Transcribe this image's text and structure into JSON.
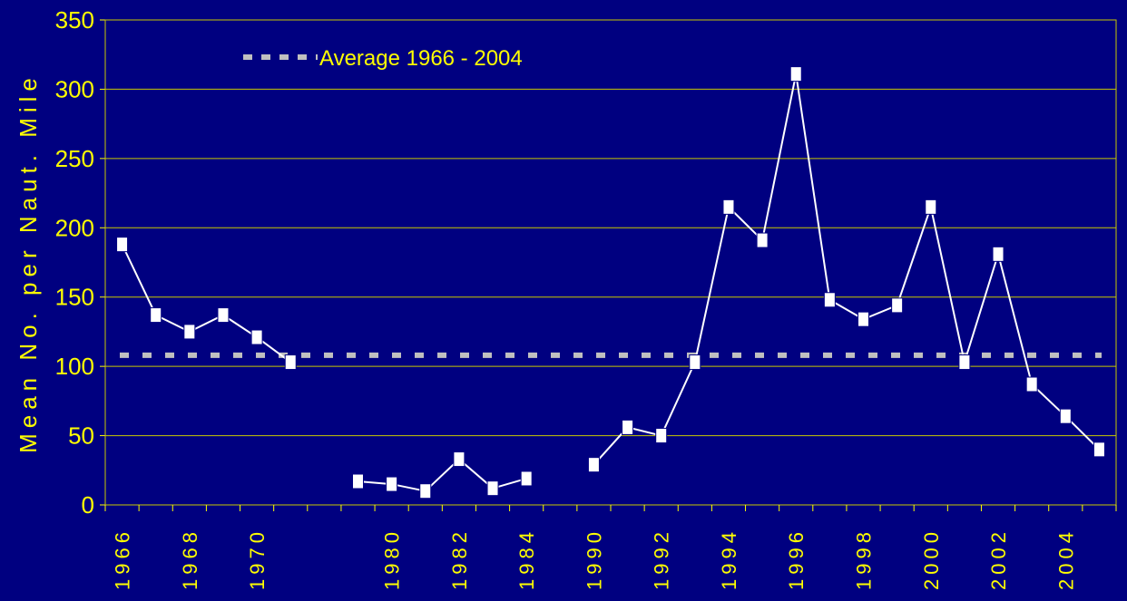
{
  "chart_data": {
    "type": "line",
    "y_label": "Mean No. per Naut. Mile",
    "categories": [
      "1966",
      null,
      "1968",
      null,
      "1970",
      null,
      null,
      null,
      "1980",
      null,
      "1982",
      null,
      "1984",
      null,
      "1990",
      null,
      "1992",
      null,
      "1994",
      null,
      "1996",
      null,
      "1998",
      null,
      "2000",
      null,
      "2002",
      null,
      "2004",
      null
    ],
    "series": [
      {
        "name": null,
        "color": "#ffffff",
        "values": [
          188,
          137,
          125,
          137,
          121,
          103,
          null,
          17,
          15,
          10,
          33,
          12,
          19,
          null,
          29,
          56,
          50,
          103,
          215,
          191,
          311,
          148,
          134,
          144,
          215,
          103,
          181,
          87,
          64,
          40
        ]
      }
    ],
    "average": {
      "name": "Average 1966 - 2004",
      "value": 108,
      "color": "#c0c0c0"
    },
    "ylim": [
      0,
      350
    ],
    "yticks": [
      0,
      50,
      100,
      150,
      200,
      250,
      300,
      350
    ],
    "grid": true
  }
}
